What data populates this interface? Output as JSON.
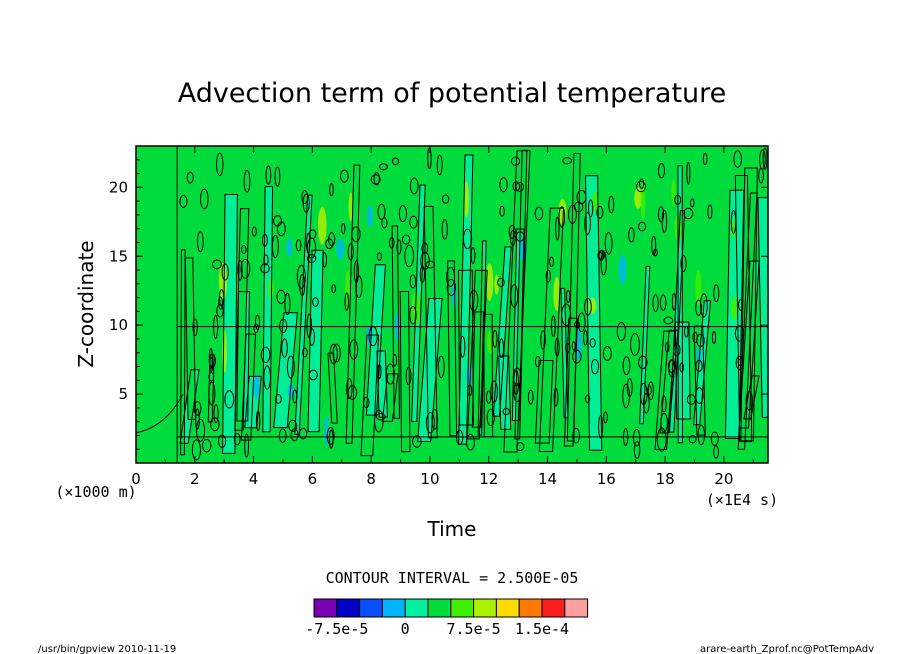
{
  "chart_data": {
    "type": "heatmap",
    "title": "Advection term of potential temperature",
    "xlabel": "Time",
    "ylabel": "Z-coordinate",
    "x_unit": "(×1E4 s)",
    "y_unit": "(×1000 m)",
    "xlim": [
      0,
      21.5
    ],
    "ylim": [
      0,
      23
    ],
    "x_ticks": [
      "0",
      "2",
      "4",
      "6",
      "8",
      "10",
      "12",
      "14",
      "16",
      "18",
      "20"
    ],
    "y_ticks": [
      "5",
      "10",
      "15",
      "20"
    ],
    "contour_interval": "CONTOUR INTERVAL = 2.500E-05",
    "colorbar": {
      "colors": [
        "#7a00b4",
        "#0000c8",
        "#0a50ff",
        "#00b4ff",
        "#00f0a0",
        "#00dc3c",
        "#3cf000",
        "#aaf000",
        "#ffdc00",
        "#ff7800",
        "#ff1e1e",
        "#ffa0a0"
      ],
      "tick_labels": [
        "-7.5e-5",
        "0",
        "7.5e-5",
        "1.5e-4"
      ]
    }
  },
  "footer": {
    "left": "/usr/bin/gpview   2010-11-19",
    "right": "arare-earth_Zprof.nc@PotTempAdv"
  }
}
